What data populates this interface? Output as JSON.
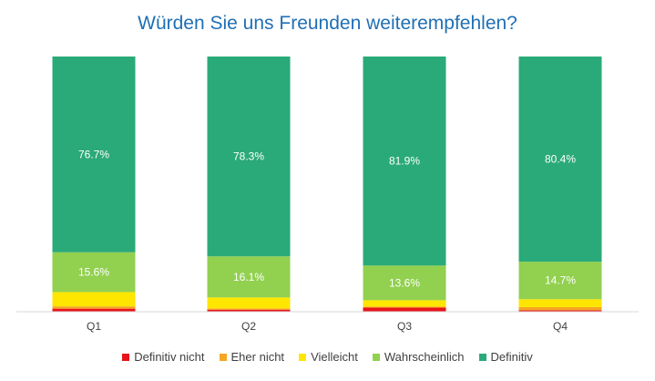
{
  "chart_data": {
    "type": "bar",
    "stacked": "percent",
    "title": "Würden Sie uns Freunden weiterempfehlen?",
    "categories": [
      "Q1",
      "Q2",
      "Q3",
      "Q4"
    ],
    "series": [
      {
        "name": "Definitiv nicht",
        "color": "#e8141b",
        "values": [
          1.2,
          0.8,
          1.6,
          0.6
        ]
      },
      {
        "name": "Eher nicht",
        "color": "#f5a623",
        "values": [
          0.9,
          0.5,
          0.4,
          1.2
        ]
      },
      {
        "name": "Vielleicht",
        "color": "#ffe600",
        "values": [
          5.6,
          4.3,
          2.5,
          3.1
        ]
      },
      {
        "name": "Wahrscheinlich",
        "color": "#92d050",
        "values": [
          15.6,
          16.1,
          13.6,
          14.7
        ]
      },
      {
        "name": "Definitiv",
        "color": "#2aaa78",
        "values": [
          76.7,
          78.3,
          81.9,
          80.4
        ]
      }
    ],
    "data_labels": {
      "Wahrscheinlich": [
        "15.6%",
        "16.1%",
        "13.6%",
        "14.7%"
      ],
      "Definitiv": [
        "76.7%",
        "78.3%",
        "81.9%",
        "80.4%"
      ]
    },
    "ylim": [
      0,
      100
    ],
    "grid": false,
    "legend_position": "bottom"
  }
}
